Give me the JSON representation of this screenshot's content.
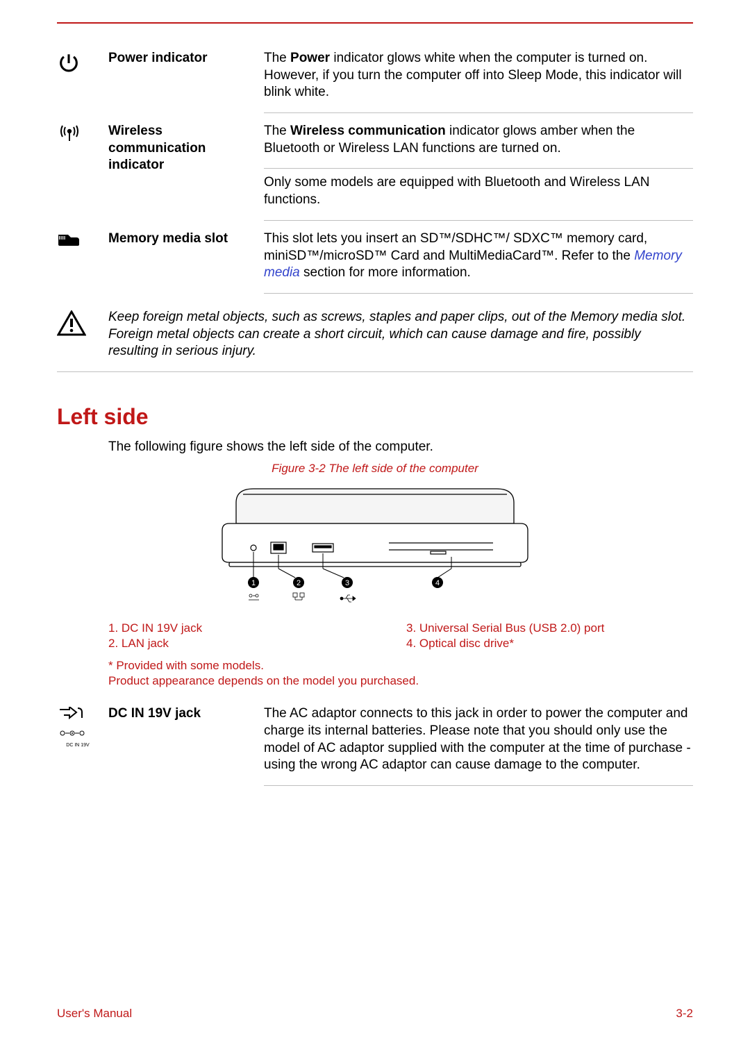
{
  "colors": {
    "accent": "#c01818",
    "rule": "#bfbfbf",
    "link": "#3344cc",
    "text": "#000000",
    "bg": "#ffffff"
  },
  "rows": [
    {
      "icon": "power-icon",
      "label": "Power indicator",
      "desc_html": "The <b>Power</b> indicator glows white when the computer is turned on. However, if you turn the computer off into Sleep Mode, this indicator will blink white."
    },
    {
      "icon": "wireless-icon",
      "label": "Wireless communication indicator",
      "desc_html": "The <b>Wireless communication</b> indicator glows amber when the Bluetooth or Wireless LAN functions are turned on.",
      "desc2": "Only some models are equipped with Bluetooth and Wireless LAN functions."
    },
    {
      "icon": "sd-icon",
      "label": "Memory media slot",
      "desc_html": "This slot lets you insert an SD™/SDHC™/ SDXC™ memory card, miniSD™/microSD™ Card and MultiMediaCard™. Refer to the <span class=\"link\">Memory media</span> section for more information."
    }
  ],
  "warning": "Keep foreign metal objects, such as screws, staples and paper clips, out of the Memory media slot. Foreign metal objects can create a short circuit, which can cause damage and fire, possibly resulting in serious injury.",
  "section_heading": "Left side",
  "section_intro": "The following figure shows the left side of the computer.",
  "figure_caption": "Figure 3-2 The left side of the computer",
  "legend": {
    "left": [
      "1. DC IN 19V jack",
      "2. LAN jack"
    ],
    "right": [
      "3. Universal Serial Bus (USB 2.0) port",
      "4. Optical disc drive*"
    ]
  },
  "legend_note_line1": "* Provided with some models.",
  "legend_note_line2": "Product appearance depends on the model you purchased.",
  "dcrow": {
    "label": "DC IN 19V jack",
    "desc": "The AC adaptor connects to this jack in order to power the computer and charge its internal batteries. Please note that you should only use the model of AC adaptor supplied with the computer at the time of purchase - using the wrong AC adaptor can cause damage to the computer."
  },
  "dcin_sub": "DC IN 19V",
  "footer": {
    "left": "User's Manual",
    "right": "3-2"
  }
}
